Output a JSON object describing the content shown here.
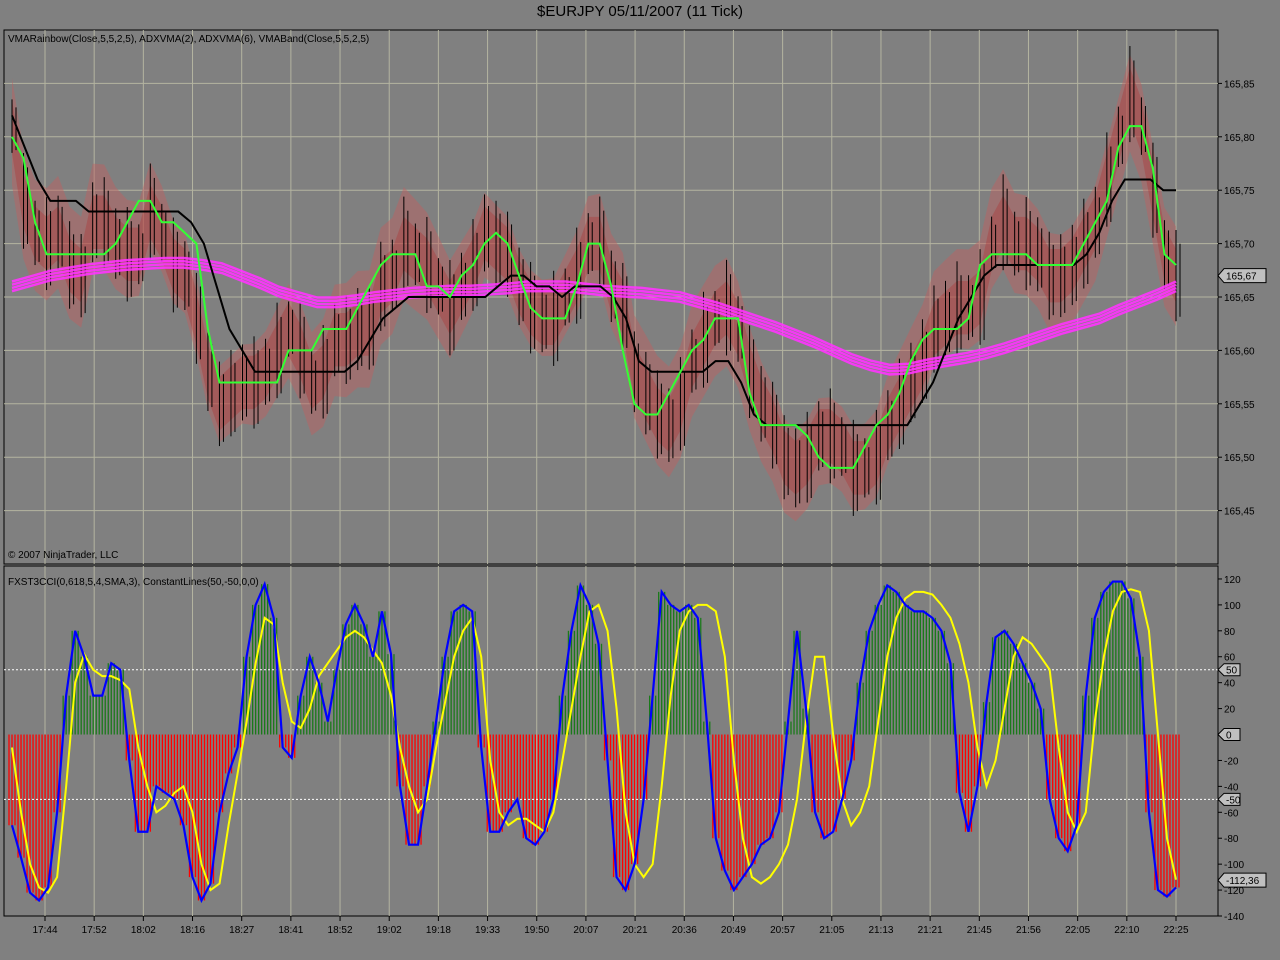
{
  "title": "$EURJPY  05/11/2007  (11 Tick)",
  "copyright": "© 2007 NinjaTrader, LLC",
  "colors": {
    "background": "#808080",
    "grid": "#b4b4a0",
    "candle": "#000000",
    "band": "#c06060",
    "band_dark": "#b03030",
    "vma_rainbow": "#ff33ff",
    "adxvma_fast": "#33ff33",
    "adxvma_slow": "#000000",
    "cci_line": "#0000ff",
    "cci_signal": "#ffff00",
    "hist_pos": "#1a7a1a",
    "hist_neg": "#ff0000",
    "constant_line": "#ffffff"
  },
  "chart_data": [
    {
      "type": "line",
      "title": "",
      "indicator_label": "VMARainbow(Close,5,5,2,5), ADXVMA(2), ADXVMA(6), VMABand(Close,5,5,2,5)",
      "ylim": [
        165.4,
        165.9
      ],
      "y_ticks": [
        "165,85",
        "165,80",
        "165,75",
        "165,70",
        "165,65",
        "165,60",
        "165,55",
        "165,50",
        "165,45"
      ],
      "last_value": "165,67",
      "series": [
        {
          "values": [
            165.81,
            165.74,
            165.71,
            165.7,
            165.71,
            165.68,
            165.67,
            165.72,
            165.72,
            165.7,
            165.69,
            165.69,
            165.73,
            165.71,
            165.68,
            165.67,
            165.63,
            165.58,
            165.55,
            165.56,
            165.57,
            165.57,
            165.58,
            165.6,
            165.62,
            165.6,
            165.57,
            165.58,
            165.61,
            165.61,
            165.62,
            165.62,
            165.66,
            165.67,
            165.7,
            165.69,
            165.68,
            165.66,
            165.64,
            165.66,
            165.68,
            165.71,
            165.7,
            165.69,
            165.66,
            165.64,
            165.63,
            165.63,
            165.65,
            165.67,
            165.7,
            165.7,
            165.66,
            165.64,
            165.58,
            165.56,
            165.54,
            165.53,
            165.55,
            165.59,
            165.61,
            165.63,
            165.64,
            165.62,
            165.58,
            165.55,
            165.53,
            165.5,
            165.49,
            165.5,
            165.52,
            165.52,
            165.51,
            165.49,
            165.49,
            165.5,
            165.53,
            165.55,
            165.57,
            165.59,
            165.62,
            165.63,
            165.64,
            165.64,
            165.65,
            165.7,
            165.72,
            165.7,
            165.7,
            165.69,
            165.67,
            165.67,
            165.68,
            165.7,
            165.72,
            165.76,
            165.8,
            165.84,
            165.81,
            165.75,
            165.69,
            165.67
          ]
        },
        {
          "name": "ADXVMA(2)",
          "values": [
            165.8,
            165.78,
            165.72,
            165.69,
            165.69,
            165.69,
            165.69,
            165.69,
            165.69,
            165.7,
            165.72,
            165.74,
            165.74,
            165.72,
            165.72,
            165.71,
            165.7,
            165.62,
            165.57,
            165.57,
            165.57,
            165.57,
            165.57,
            165.57,
            165.6,
            165.6,
            165.6,
            165.62,
            165.62,
            165.62,
            165.64,
            165.66,
            165.68,
            165.69,
            165.69,
            165.69,
            165.66,
            165.66,
            165.65,
            165.67,
            165.68,
            165.7,
            165.71,
            165.7,
            165.67,
            165.64,
            165.63,
            165.63,
            165.63,
            165.66,
            165.7,
            165.7,
            165.66,
            165.6,
            165.55,
            165.54,
            165.54,
            165.56,
            165.58,
            165.6,
            165.61,
            165.63,
            165.63,
            165.63,
            165.56,
            165.53,
            165.53,
            165.53,
            165.53,
            165.52,
            165.5,
            165.49,
            165.49,
            165.49,
            165.51,
            165.53,
            165.54,
            165.56,
            165.59,
            165.61,
            165.62,
            165.62,
            165.62,
            165.63,
            165.68,
            165.69,
            165.69,
            165.69,
            165.69,
            165.68,
            165.68,
            165.68,
            165.68,
            165.7,
            165.72,
            165.74,
            165.79,
            165.81,
            165.81,
            165.77,
            165.69,
            165.68
          ]
        },
        {
          "name": "ADXVMA(6)",
          "values": [
            165.82,
            165.79,
            165.76,
            165.74,
            165.74,
            165.74,
            165.73,
            165.73,
            165.73,
            165.73,
            165.73,
            165.73,
            165.73,
            165.73,
            165.72,
            165.7,
            165.66,
            165.62,
            165.6,
            165.58,
            165.58,
            165.58,
            165.58,
            165.58,
            165.58,
            165.58,
            165.58,
            165.59,
            165.61,
            165.63,
            165.64,
            165.65,
            165.65,
            165.65,
            165.65,
            165.65,
            165.65,
            165.65,
            165.66,
            165.67,
            165.67,
            165.66,
            165.66,
            165.65,
            165.66,
            165.66,
            165.66,
            165.65,
            165.63,
            165.59,
            165.58,
            165.58,
            165.58,
            165.58,
            165.58,
            165.59,
            165.59,
            165.57,
            165.54,
            165.53,
            165.53,
            165.53,
            165.53,
            165.53,
            165.53,
            165.53,
            165.53,
            165.53,
            165.53,
            165.53,
            165.53,
            165.55,
            165.57,
            165.6,
            165.63,
            165.65,
            165.67,
            165.68,
            165.68,
            165.68,
            165.68,
            165.68,
            165.68,
            165.68,
            165.69,
            165.71,
            165.74,
            165.76,
            165.76,
            165.76,
            165.75,
            165.75
          ]
        },
        {
          "name": "VMARainbow",
          "values": [
            165.66,
            165.665,
            165.67,
            165.673,
            165.676,
            165.678,
            165.68,
            165.681,
            165.682,
            165.682,
            165.68,
            165.677,
            165.67,
            165.663,
            165.655,
            165.65,
            165.645,
            165.645,
            165.647,
            165.65,
            165.652,
            165.654,
            165.655,
            165.656,
            165.656,
            165.657,
            165.658,
            165.66,
            165.66,
            165.66,
            165.658,
            165.656,
            165.655,
            165.654,
            165.652,
            165.65,
            165.645,
            165.64,
            165.634,
            165.628,
            165.622,
            165.615,
            165.608,
            165.6,
            165.592,
            165.586,
            165.582,
            165.583,
            165.587,
            165.59,
            165.593,
            165.597,
            165.602,
            165.608,
            165.614,
            165.62,
            165.625,
            165.63,
            165.638,
            165.645,
            165.652,
            165.66
          ]
        }
      ],
      "x_ticks": [
        "17:44",
        "17:52",
        "18:02",
        "18:16",
        "18:27",
        "18:41",
        "18:52",
        "19:02",
        "19:18",
        "19:33",
        "19:50",
        "20:07",
        "20:21",
        "20:36",
        "20:49",
        "20:57",
        "21:05",
        "21:13",
        "21:21",
        "21:45",
        "21:56",
        "22:05",
        "22:10",
        "22:25"
      ]
    },
    {
      "type": "bar",
      "title": "",
      "indicator_label": "FXST3CCI(0,618,5,4,SMA,3), ConstantLines(50,-50,0,0)",
      "ylim": [
        -140,
        130
      ],
      "y_ticks": [
        "120",
        "100",
        "80",
        "60",
        "40",
        "20",
        "0",
        "-20",
        "-40",
        "-60",
        "-80",
        "-100",
        "-120",
        "-140"
      ],
      "constant_lines": [
        50,
        -50,
        0
      ],
      "marker_labels": [
        "50",
        "0",
        "-50"
      ],
      "last_value": "-112,36",
      "series": [
        {
          "name": "CCI",
          "values": [
            -70,
            -95,
            -122,
            -128,
            -118,
            -60,
            30,
            80,
            60,
            30,
            30,
            55,
            50,
            -20,
            -75,
            -75,
            -40,
            -45,
            -50,
            -70,
            -110,
            -128,
            -115,
            -60,
            -30,
            -10,
            60,
            100,
            116,
            90,
            -10,
            -18,
            30,
            60,
            40,
            10,
            50,
            85,
            100,
            85,
            60,
            95,
            62,
            -40,
            -85,
            -85,
            -40,
            10,
            60,
            95,
            100,
            95,
            -10,
            -75,
            -75,
            -60,
            -50,
            -80,
            -85,
            -75,
            -50,
            30,
            80,
            115,
            100,
            70,
            -20,
            -110,
            -120,
            -100,
            -50,
            30,
            110,
            100,
            95,
            100,
            90,
            10,
            -80,
            -105,
            -120,
            -110,
            -100,
            -85,
            -80,
            -60,
            10,
            80,
            20,
            -60,
            -80,
            -75,
            -50,
            -20,
            40,
            80,
            100,
            115,
            110,
            100,
            95,
            95,
            90,
            80,
            55,
            -45,
            -75,
            -40,
            25,
            75,
            80,
            70,
            55,
            40,
            20,
            -50,
            -80,
            -90,
            -70,
            30,
            90,
            110,
            118,
            118,
            105,
            60,
            -60,
            -120,
            -125,
            -118
          ]
        },
        {
          "name": "Signal",
          "values": [
            -10,
            -60,
            -100,
            -118,
            -122,
            -110,
            -40,
            40,
            62,
            50,
            45,
            45,
            42,
            35,
            -10,
            -40,
            -60,
            -55,
            -45,
            -40,
            -60,
            -100,
            -120,
            -115,
            -70,
            -30,
            10,
            55,
            90,
            85,
            40,
            10,
            5,
            20,
            45,
            55,
            65,
            75,
            80,
            75,
            65,
            55,
            30,
            -10,
            -40,
            -60,
            -50,
            -10,
            25,
            60,
            80,
            90,
            60,
            -20,
            -60,
            -70,
            -65,
            -65,
            -70,
            -75,
            -60,
            -20,
            20,
            60,
            95,
            100,
            80,
            20,
            -60,
            -100,
            -110,
            -100,
            -40,
            30,
            80,
            95,
            100,
            100,
            95,
            60,
            -20,
            -80,
            -110,
            -115,
            -110,
            -100,
            -85,
            -50,
            10,
            60,
            60,
            0,
            -50,
            -70,
            -60,
            -40,
            10,
            60,
            90,
            105,
            110,
            110,
            108,
            100,
            90,
            70,
            40,
            -10,
            -40,
            -20,
            20,
            60,
            75,
            70,
            60,
            50,
            -10,
            -60,
            -75,
            -60,
            10,
            60,
            95,
            110,
            112,
            110,
            80,
            0,
            -80,
            -112
          ]
        }
      ],
      "x_ticks": [
        "17:44",
        "17:52",
        "18:02",
        "18:16",
        "18:27",
        "18:41",
        "18:52",
        "19:02",
        "19:18",
        "19:33",
        "19:50",
        "20:07",
        "20:21",
        "20:36",
        "20:49",
        "20:57",
        "21:05",
        "21:13",
        "21:21",
        "21:45",
        "21:56",
        "22:05",
        "22:10",
        "22:25"
      ]
    }
  ]
}
